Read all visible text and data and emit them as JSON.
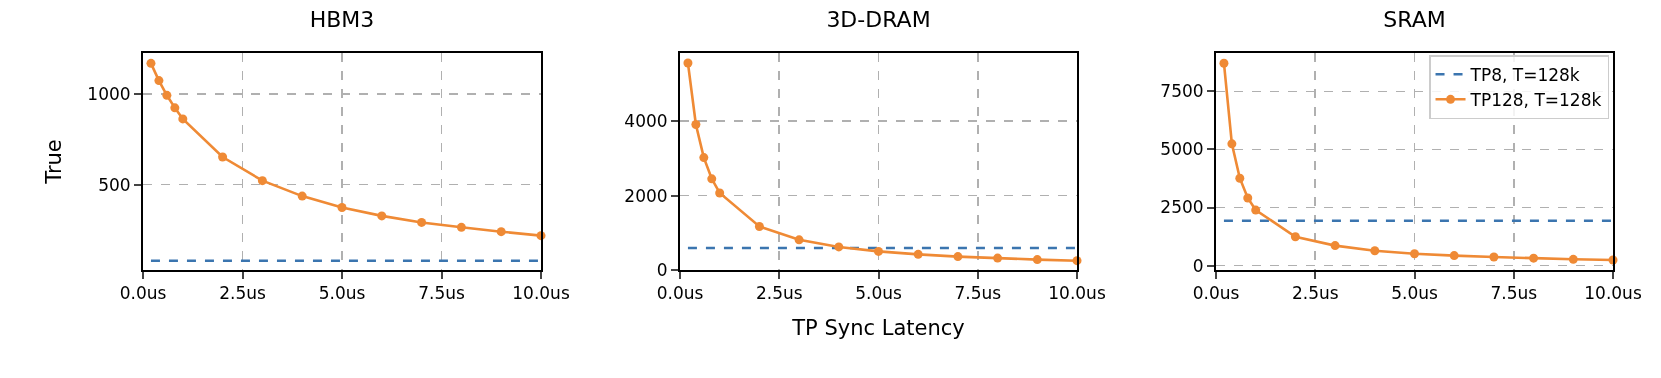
{
  "chart_data": [
    {
      "type": "line",
      "title": "HBM3",
      "ylabel": "True",
      "xlim": [
        0,
        10
      ],
      "ylim": [
        30,
        1225
      ],
      "xticks": [
        {
          "value": 0,
          "label": "0.0us"
        },
        {
          "value": 2.5,
          "label": "2.5us"
        },
        {
          "value": 5,
          "label": "5.0us"
        },
        {
          "value": 7.5,
          "label": "7.5us"
        },
        {
          "value": 10,
          "label": "10.0us"
        }
      ],
      "yticks": [
        500,
        1000
      ],
      "grid": "dashed",
      "legend": false,
      "series": [
        {
          "color": "#3b75af",
          "line_style": "dashed",
          "marker": "none",
          "x": [
            0.2,
            10
          ],
          "values": [
            81,
            81
          ]
        },
        {
          "color": "#ef8a35",
          "line_style": "solid",
          "marker": "circle",
          "x": [
            0.2,
            0.4,
            0.6,
            0.8,
            1,
            2,
            3,
            4,
            5,
            6,
            7,
            8,
            9,
            10
          ],
          "values": [
            1168,
            1073,
            992,
            923,
            862,
            652,
            522,
            437,
            374,
            328,
            292,
            265,
            241,
            219
          ]
        }
      ]
    },
    {
      "type": "line",
      "title": "3D-DRAM",
      "xlabel": "TP Sync Latency",
      "xlim": [
        0,
        10
      ],
      "ylim": [
        0,
        5830
      ],
      "xticks": [
        {
          "value": 0,
          "label": "0.0us"
        },
        {
          "value": 2.5,
          "label": "2.5us"
        },
        {
          "value": 5,
          "label": "5.0us"
        },
        {
          "value": 7.5,
          "label": "7.5us"
        },
        {
          "value": 10,
          "label": "10.0us"
        }
      ],
      "yticks": [
        0,
        2000,
        4000
      ],
      "grid": "dashed",
      "legend": false,
      "series": [
        {
          "color": "#3b75af",
          "line_style": "dashed",
          "marker": "none",
          "x": [
            0.2,
            10
          ],
          "values": [
            590,
            590
          ]
        },
        {
          "color": "#ef8a35",
          "line_style": "solid",
          "marker": "circle",
          "x": [
            0.2,
            0.4,
            0.6,
            0.8,
            1,
            2,
            3,
            4,
            5,
            6,
            7,
            8,
            9,
            10
          ],
          "values": [
            5560,
            3910,
            3020,
            2450,
            2070,
            1170,
            810,
            620,
            500,
            420,
            360,
            320,
            280,
            250
          ]
        }
      ]
    },
    {
      "type": "line",
      "title": "SRAM",
      "xlim": [
        0,
        10
      ],
      "ylim": [
        -190,
        9150
      ],
      "xticks": [
        {
          "value": 0,
          "label": "0.0us"
        },
        {
          "value": 2.5,
          "label": "2.5us"
        },
        {
          "value": 5,
          "label": "5.0us"
        },
        {
          "value": 7.5,
          "label": "7.5us"
        },
        {
          "value": 10,
          "label": "10.0us"
        }
      ],
      "yticks": [
        0,
        2500,
        5000,
        7500
      ],
      "grid": "dashed",
      "legend": "top right",
      "series": [
        {
          "name": "TP8, T=128k",
          "color": "#3b75af",
          "line_style": "dashed",
          "marker": "none",
          "x": [
            0.2,
            10
          ],
          "values": [
            1930,
            1930
          ]
        },
        {
          "name": "TP128, T=128k",
          "color": "#ef8a35",
          "line_style": "solid",
          "marker": "circle",
          "x": [
            0.2,
            0.4,
            0.6,
            0.8,
            1,
            2,
            3,
            4,
            5,
            6,
            7,
            8,
            9,
            10
          ],
          "values": [
            8710,
            5240,
            3760,
            2910,
            2390,
            1240,
            860,
            640,
            510,
            430,
            370,
            320,
            270,
            240
          ]
        }
      ]
    }
  ]
}
